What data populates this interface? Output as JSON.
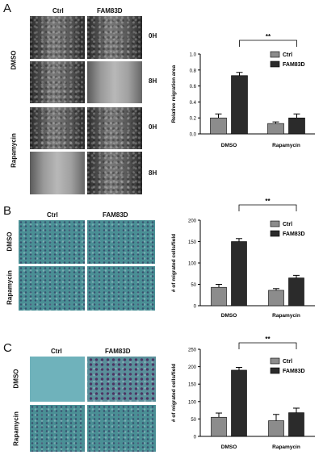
{
  "panels": [
    {
      "letter": "A",
      "col_labels": [
        "Ctrl",
        "FAM83D"
      ],
      "row_labels": [
        "DMSO",
        "Rapamycin"
      ],
      "time_labels": [
        "0H",
        "8H",
        "0H",
        "8H"
      ],
      "significance": "**",
      "legend": [
        "Ctrl",
        "FAM83D"
      ]
    },
    {
      "letter": "B",
      "col_labels": [
        "Ctrl",
        "FAM83D"
      ],
      "row_labels": [
        "DMSO",
        "Rapamycin"
      ],
      "significance": "**",
      "legend": [
        "Ctrl",
        "FAM83D"
      ]
    },
    {
      "letter": "C",
      "col_labels": [
        "Ctrl",
        "FAM83D"
      ],
      "row_labels": [
        "DMSO",
        "Rapamycin"
      ],
      "significance": "**",
      "legend": [
        "Ctrl",
        "FAM83D"
      ]
    }
  ],
  "colors": {
    "ctrl": "#8c8c8c",
    "fam83d": "#2b2b2b"
  },
  "chart_data": [
    {
      "type": "bar",
      "categories": [
        "DMSO",
        "Rapamycin"
      ],
      "series": [
        {
          "name": "Ctrl",
          "values": [
            0.2,
            0.13
          ],
          "errors": [
            0.05,
            0.02
          ]
        },
        {
          "name": "FAM83D",
          "values": [
            0.73,
            0.2
          ],
          "errors": [
            0.04,
            0.05
          ]
        }
      ],
      "ylabel": "Relative migration area",
      "ylim": [
        0,
        1.0
      ],
      "yticks": [
        "0.0",
        "0.2",
        "0.4",
        "0.6",
        "0.8",
        "1.0"
      ],
      "legend": "top-right"
    },
    {
      "type": "bar",
      "categories": [
        "DMSO",
        "Rapamycin"
      ],
      "series": [
        {
          "name": "Ctrl",
          "values": [
            43,
            36
          ],
          "errors": [
            7,
            4
          ]
        },
        {
          "name": "FAM83D",
          "values": [
            150,
            65
          ],
          "errors": [
            7,
            6
          ]
        }
      ],
      "ylabel": "# of migrated cells/field",
      "ylim": [
        0,
        200
      ],
      "yticks": [
        "0",
        "50",
        "100",
        "150",
        "200"
      ],
      "legend": "top-right"
    },
    {
      "type": "bar",
      "categories": [
        "DMSO",
        "Rapamycin"
      ],
      "series": [
        {
          "name": "Ctrl",
          "values": [
            55,
            45
          ],
          "errors": [
            12,
            18
          ]
        },
        {
          "name": "FAM83D",
          "values": [
            190,
            68
          ],
          "errors": [
            8,
            13
          ]
        }
      ],
      "ylabel": "# of migrated cells/field",
      "ylim": [
        0,
        250
      ],
      "yticks": [
        "0",
        "50",
        "100",
        "150",
        "200",
        "250"
      ],
      "legend": "top-right"
    }
  ]
}
